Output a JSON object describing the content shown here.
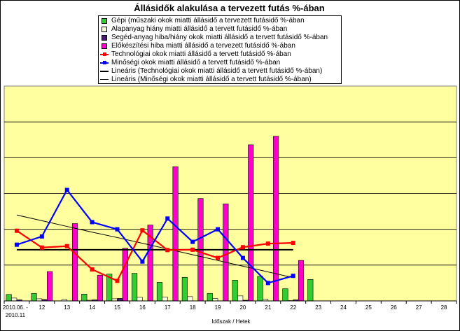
{
  "chart_data": {
    "type": "bar",
    "title": "Állásidők alakulása a tervezett futás %-ában",
    "xlabel": "Időszak / Hetek",
    "categories": [
      "2010.06. - 2010.11",
      "12",
      "13",
      "14",
      "15",
      "16",
      "17",
      "18",
      "19",
      "20",
      "21",
      "22",
      "23",
      "24",
      "25",
      "26",
      "27",
      "28"
    ],
    "ylim": [
      0,
      6
    ],
    "grid": true,
    "legend_position": "top-center",
    "series": [
      {
        "name": "Gépi (műszaki okok miatti állásidő a tervezett futásidő   %-ában",
        "kind": "bar",
        "color": "#33cc33",
        "values": [
          0.18,
          0.21,
          0,
          0.19,
          0.75,
          0.77,
          0.52,
          0.66,
          0.21,
          0.58,
          0.69,
          0.34,
          0.6,
          null,
          null,
          null,
          null,
          null
        ]
      },
      {
        "name": "Alapanyag hiány  miatti állásidő  a tervett futásidő    %-ában",
        "kind": "bar",
        "color": "#ffffe0",
        "values": [
          0.08,
          0.06,
          0.04,
          0.02,
          0.06,
          0.1,
          0.11,
          0.12,
          0.07,
          0.14,
          0.05,
          0.01,
          null,
          null,
          null,
          null,
          null,
          null
        ]
      },
      {
        "name": "Segéd-anyag hiba/hiány okok miatti állásidő a tervett futásidő %-ában",
        "kind": "bar",
        "color": "#4b1c6e",
        "values": [
          0.03,
          0.04,
          0,
          0.03,
          0.07,
          0,
          0,
          0,
          0,
          0.02,
          0,
          0.03,
          null,
          null,
          null,
          null,
          null,
          null
        ]
      },
      {
        "name": "Előkészítési hiba  miatti állásidő a tervezett futásidő    %-ában",
        "kind": "bar",
        "color": "#ff00cc",
        "values": [
          0,
          0.82,
          2.16,
          0.72,
          1.47,
          2.12,
          3.75,
          2.86,
          2.71,
          4.36,
          4.6,
          1.13,
          null,
          null,
          null,
          null,
          null,
          null
        ]
      },
      {
        "name": "Technológiai okok miatti állásidő a tervett futásidő    %-ában",
        "kind": "line",
        "color": "#ff0000",
        "marker": "square",
        "values": [
          1.96,
          1.49,
          1.53,
          0.88,
          0.56,
          1.97,
          1.42,
          1.43,
          1.2,
          1.5,
          1.6,
          1.62,
          null,
          null,
          null,
          null,
          null,
          null
        ]
      },
      {
        "name": "Minőségi okok miatti állásidő a tervett futásidő    %-ában",
        "kind": "line",
        "color": "#0000ff",
        "marker": "square",
        "values": [
          1.57,
          1.8,
          3.1,
          2.2,
          2.0,
          1.1,
          2.3,
          1.65,
          2.0,
          1.2,
          0.5,
          0.7,
          null,
          null,
          null,
          null,
          null,
          null
        ]
      },
      {
        "name": "Lineáris (Technológiai okok miatti állásidő a tervett futásidő   %-ában)",
        "kind": "trend",
        "color": "#000000",
        "width": 2,
        "values": [
          1.43,
          1.43,
          1.43,
          1.43,
          1.43,
          1.43,
          1.43,
          1.43,
          1.43,
          1.43,
          1.43,
          1.43,
          null,
          null,
          null,
          null,
          null,
          null
        ]
      },
      {
        "name": "Lineáris (Minőségi okok miatti állásidő a tervett futásidő   %-ában)",
        "kind": "trend",
        "color": "#000000",
        "width": 1,
        "values": [
          2.4,
          2.24,
          2.08,
          1.92,
          1.77,
          1.61,
          1.45,
          1.29,
          1.13,
          0.97,
          0.81,
          0.65,
          null,
          null,
          null,
          null,
          null,
          null
        ]
      }
    ]
  }
}
